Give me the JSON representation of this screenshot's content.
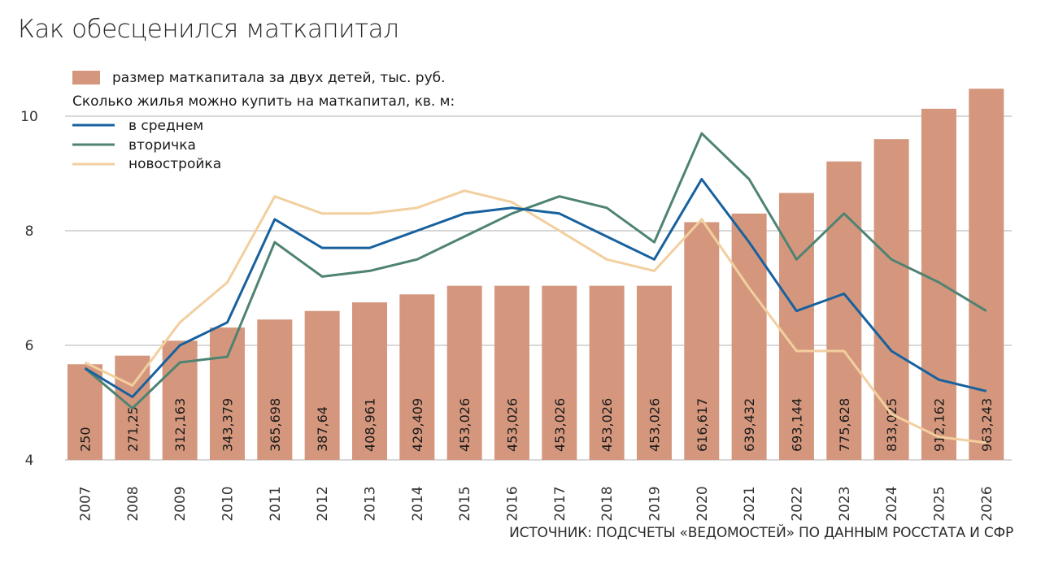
{
  "title": "Как обесценился маткапитал",
  "source": "ИСТОЧНИК: ПОДСЧЕТЫ «ВЕДОМОСТЕЙ» ПО ДАННЫМ РОССТАТА И СФР",
  "legend": {
    "bars_label": "размер маткапитала за двух детей, тыс. руб.",
    "lines_heading": "Сколько жилья можно купить на маткапитал, кв. м:"
  },
  "colors": {
    "bar": "#d4977d",
    "average": "#17619e",
    "secondary": "#4e8373",
    "new": "#f2cf9f",
    "grid": "#b0b0b0"
  },
  "chart_data": {
    "type": "bar",
    "title": "Как обесценился маткапитал",
    "categories": [
      "2007",
      "2008",
      "2009",
      "2010",
      "2011",
      "2012",
      "2013",
      "2014",
      "2015",
      "2016",
      "2017",
      "2018",
      "2019",
      "2020",
      "2021",
      "2022",
      "2023",
      "2024",
      "2025",
      "2026"
    ],
    "bars": {
      "name": "размер маткапитала за двух детей, тыс. руб.",
      "labels": [
        "250",
        "271,25",
        "312,163",
        "343,379",
        "365,698",
        "387,64",
        "408,961",
        "429,409",
        "453,026",
        "453,026",
        "453,026",
        "453,026",
        "453,026",
        "616,617",
        "639,432",
        "693,144",
        "775,628",
        "833,025",
        "912,162",
        "963,243"
      ],
      "heights": [
        5.67,
        5.82,
        6.08,
        6.31,
        6.45,
        6.6,
        6.75,
        6.89,
        7.04,
        7.04,
        7.04,
        7.04,
        7.04,
        8.15,
        8.3,
        8.66,
        9.21,
        9.6,
        10.13,
        10.48
      ]
    },
    "series": [
      {
        "name": "в среднем",
        "values": [
          5.6,
          5.1,
          6.0,
          6.4,
          8.2,
          7.7,
          7.7,
          8.0,
          8.3,
          8.4,
          8.3,
          7.9,
          7.5,
          8.9,
          7.8,
          6.6,
          6.9,
          5.9,
          5.4,
          5.2
        ]
      },
      {
        "name": "вторичка",
        "values": [
          5.6,
          4.9,
          5.7,
          5.8,
          7.8,
          7.2,
          7.3,
          7.5,
          7.9,
          8.3,
          8.6,
          8.4,
          7.8,
          9.7,
          8.9,
          7.5,
          8.3,
          7.5,
          7.1,
          6.6
        ]
      },
      {
        "name": "новостройка",
        "values": [
          5.7,
          5.3,
          6.4,
          7.1,
          8.6,
          8.3,
          8.3,
          8.4,
          8.7,
          8.5,
          8.0,
          7.5,
          7.3,
          8.2,
          7.0,
          5.9,
          5.9,
          4.8,
          4.4,
          4.3
        ]
      }
    ],
    "y_ticks": [
      "4",
      "6",
      "8",
      "10"
    ],
    "ylim": [
      4,
      10.6
    ],
    "ylabel": "",
    "xlabel": "",
    "grid": true,
    "legend_position": "top-left"
  }
}
